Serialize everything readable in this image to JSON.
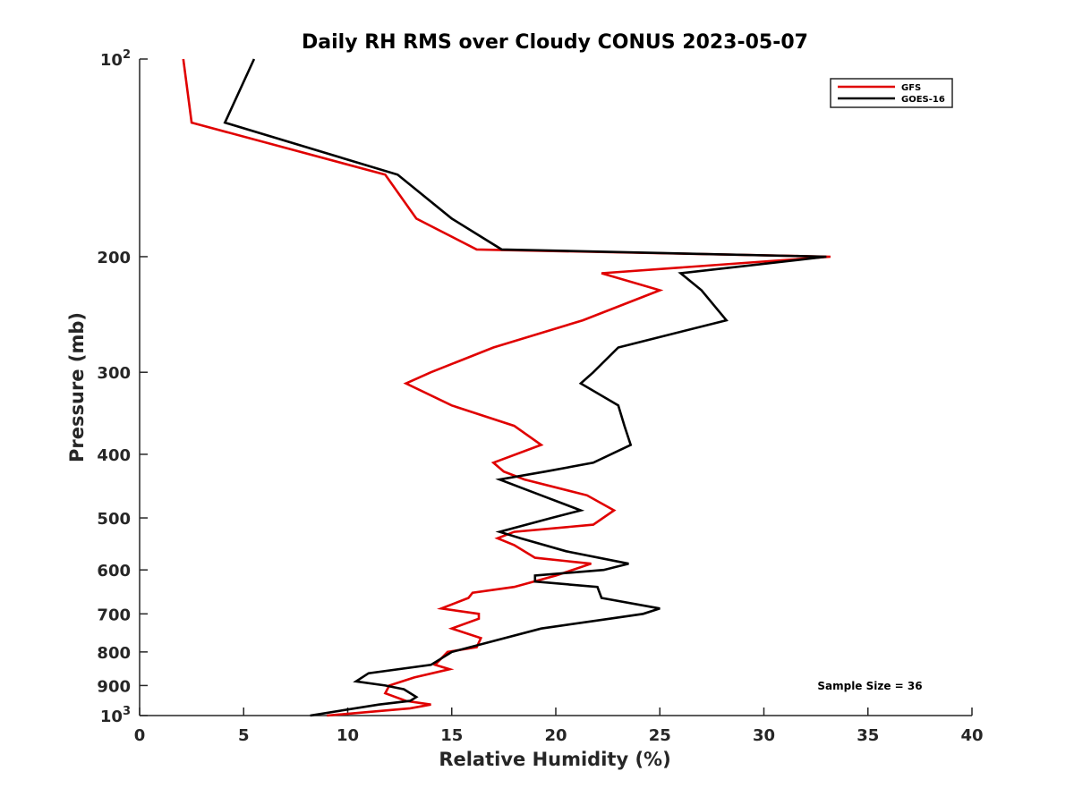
{
  "chart_data": {
    "type": "line",
    "title": "Daily RH RMS over Cloudy CONUS 2023-05-07",
    "xlabel": "Relative Humidity (%)",
    "ylabel": "Pressure (mb)",
    "xlim": [
      0,
      40
    ],
    "ylim": [
      100,
      1000
    ],
    "y_scale": "log",
    "y_reversed": true,
    "grid": false,
    "legend_position": "top-right",
    "x_ticks": [
      {
        "value": 0,
        "label": "0"
      },
      {
        "value": 5,
        "label": "5"
      },
      {
        "value": 10,
        "label": "10"
      },
      {
        "value": 15,
        "label": "15"
      },
      {
        "value": 20,
        "label": "20"
      },
      {
        "value": 25,
        "label": "25"
      },
      {
        "value": 30,
        "label": "30"
      },
      {
        "value": 35,
        "label": "35"
      },
      {
        "value": 40,
        "label": "40"
      }
    ],
    "y_ticks": [
      {
        "value": 100,
        "base": "10",
        "exp": "2"
      },
      {
        "value": 200,
        "base": "200",
        "exp": ""
      },
      {
        "value": 300,
        "base": "300",
        "exp": ""
      },
      {
        "value": 400,
        "base": "400",
        "exp": ""
      },
      {
        "value": 500,
        "base": "500",
        "exp": ""
      },
      {
        "value": 600,
        "base": "600",
        "exp": ""
      },
      {
        "value": 700,
        "base": "700",
        "exp": ""
      },
      {
        "value": 800,
        "base": "800",
        "exp": ""
      },
      {
        "value": 900,
        "base": "900",
        "exp": ""
      },
      {
        "value": 1000,
        "base": "10",
        "exp": "3"
      }
    ],
    "annotation": "Sample Size = 36",
    "series": [
      {
        "name": "GFS",
        "color": "#e00000",
        "points": [
          [
            2.1,
            100
          ],
          [
            2.5,
            125
          ],
          [
            11.8,
            150
          ],
          [
            13.3,
            175
          ],
          [
            16.2,
            195
          ],
          [
            33.2,
            200
          ],
          [
            22.2,
            212
          ],
          [
            25.0,
            225
          ],
          [
            21.3,
            250
          ],
          [
            17.0,
            275
          ],
          [
            14.0,
            300
          ],
          [
            12.8,
            312
          ],
          [
            15.0,
            337
          ],
          [
            18.0,
            362
          ],
          [
            19.3,
            387
          ],
          [
            17.0,
            412
          ],
          [
            17.5,
            425
          ],
          [
            18.5,
            437
          ],
          [
            21.5,
            462
          ],
          [
            22.8,
            487
          ],
          [
            21.8,
            512
          ],
          [
            18.0,
            525
          ],
          [
            17.2,
            537
          ],
          [
            18.0,
            550
          ],
          [
            19.0,
            575
          ],
          [
            21.7,
            587
          ],
          [
            20.0,
            612
          ],
          [
            18.0,
            637
          ],
          [
            16.0,
            650
          ],
          [
            15.8,
            662
          ],
          [
            14.5,
            687
          ],
          [
            16.3,
            700
          ],
          [
            16.3,
            712
          ],
          [
            15.0,
            737
          ],
          [
            16.4,
            762
          ],
          [
            16.2,
            787
          ],
          [
            14.8,
            800
          ],
          [
            14.2,
            837
          ],
          [
            14.9,
            850
          ],
          [
            13.2,
            875
          ],
          [
            12.0,
            900
          ],
          [
            11.8,
            925
          ],
          [
            12.8,
            950
          ],
          [
            14.0,
            962
          ],
          [
            13.0,
            975
          ],
          [
            9.0,
            1000
          ]
        ]
      },
      {
        "name": "GOES-16",
        "color": "#000000",
        "points": [
          [
            5.5,
            100
          ],
          [
            4.1,
            125
          ],
          [
            12.4,
            150
          ],
          [
            15.0,
            175
          ],
          [
            17.4,
            195
          ],
          [
            33.0,
            200
          ],
          [
            26.0,
            212
          ],
          [
            27.0,
            225
          ],
          [
            28.2,
            250
          ],
          [
            23.0,
            275
          ],
          [
            21.8,
            300
          ],
          [
            21.2,
            312
          ],
          [
            23.0,
            337
          ],
          [
            23.3,
            362
          ],
          [
            23.6,
            387
          ],
          [
            21.8,
            412
          ],
          [
            19.5,
            425
          ],
          [
            17.3,
            437
          ],
          [
            19.3,
            462
          ],
          [
            21.2,
            487
          ],
          [
            19.8,
            500
          ],
          [
            17.3,
            525
          ],
          [
            18.3,
            537
          ],
          [
            20.5,
            562
          ],
          [
            23.5,
            587
          ],
          [
            22.3,
            600
          ],
          [
            19.0,
            612
          ],
          [
            19.0,
            625
          ],
          [
            22.0,
            637
          ],
          [
            22.2,
            662
          ],
          [
            25.0,
            687
          ],
          [
            24.2,
            700
          ],
          [
            22.6,
            712
          ],
          [
            19.3,
            737
          ],
          [
            15.0,
            800
          ],
          [
            14.0,
            837
          ],
          [
            11.0,
            862
          ],
          [
            10.4,
            887
          ],
          [
            11.8,
            900
          ],
          [
            12.7,
            912
          ],
          [
            13.3,
            937
          ],
          [
            13.0,
            950
          ],
          [
            11.5,
            962
          ],
          [
            8.2,
            1000
          ]
        ]
      }
    ]
  }
}
